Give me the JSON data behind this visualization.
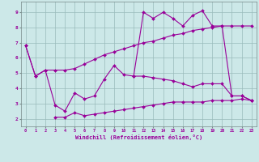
{
  "xlabel": "Windchill (Refroidissement éolien,°C)",
  "bg_color": "#cce8e8",
  "line_color": "#990099",
  "grid_color": "#99bbbb",
  "xlim": [
    -0.5,
    23.5
  ],
  "ylim": [
    1.5,
    9.7
  ],
  "xticks": [
    0,
    1,
    2,
    3,
    4,
    5,
    6,
    7,
    8,
    9,
    10,
    11,
    12,
    13,
    14,
    15,
    16,
    17,
    18,
    19,
    20,
    21,
    22,
    23
  ],
  "yticks": [
    2,
    3,
    4,
    5,
    6,
    7,
    8,
    9
  ],
  "line_trend_x": [
    0,
    1,
    2,
    3,
    4,
    5,
    6,
    7,
    8,
    9,
    10,
    11,
    12,
    13,
    14,
    15,
    16,
    17,
    18,
    19,
    20,
    21,
    22,
    23
  ],
  "line_trend_y": [
    6.8,
    4.8,
    5.2,
    5.2,
    5.2,
    5.3,
    5.6,
    5.9,
    6.2,
    6.4,
    6.6,
    6.8,
    7.0,
    7.1,
    7.3,
    7.5,
    7.6,
    7.8,
    7.9,
    8.0,
    8.1,
    8.1,
    8.1,
    8.1
  ],
  "line_mid_x": [
    0,
    1,
    2,
    3,
    4,
    5,
    6,
    7,
    8,
    9,
    10,
    11,
    12,
    13,
    14,
    15,
    16,
    17,
    18,
    19,
    20,
    21,
    22,
    23
  ],
  "line_mid_y": [
    6.8,
    4.8,
    5.2,
    2.9,
    2.5,
    3.7,
    3.3,
    3.5,
    4.6,
    5.5,
    4.9,
    4.8,
    4.8,
    4.7,
    4.6,
    4.5,
    4.3,
    4.1,
    4.3,
    4.3,
    4.3,
    3.5,
    3.5,
    3.2
  ],
  "line_spike_x": [
    11,
    12,
    13,
    14,
    15,
    16,
    17,
    18,
    19,
    20,
    21,
    22,
    23
  ],
  "line_spike_y": [
    4.8,
    9.0,
    8.6,
    9.0,
    8.6,
    8.1,
    8.8,
    9.1,
    8.1,
    8.1,
    3.5,
    3.5,
    3.2
  ],
  "line_bot_x": [
    3,
    4,
    5,
    6,
    7,
    8,
    9,
    10,
    11,
    12,
    13,
    14,
    15,
    16,
    17,
    18,
    19,
    20,
    21,
    22,
    23
  ],
  "line_bot_y": [
    2.1,
    2.1,
    2.4,
    2.2,
    2.3,
    2.4,
    2.5,
    2.6,
    2.7,
    2.8,
    2.9,
    3.0,
    3.1,
    3.1,
    3.1,
    3.1,
    3.2,
    3.2,
    3.2,
    3.3,
    3.2
  ]
}
